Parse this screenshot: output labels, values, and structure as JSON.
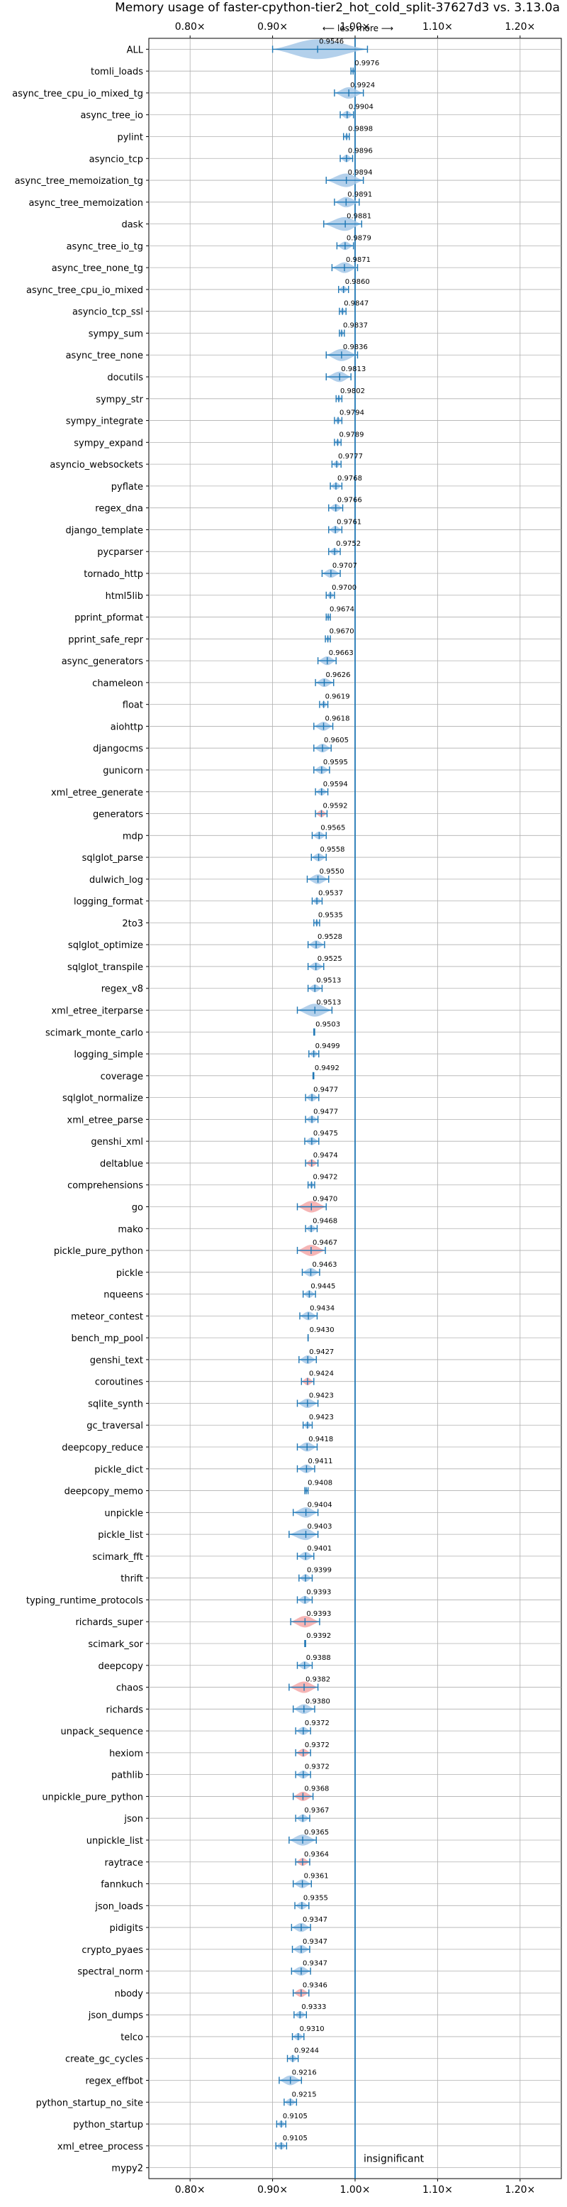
{
  "chart_data": {
    "type": "violin",
    "title": "Memory usage of faster-cpython-tier2_hot_cold_split-37627d3 vs. 3.13.0a",
    "direction_label": "⟵ less   more ⟶",
    "insignificant_label": "insignificant",
    "xlim": [
      0.75,
      1.25
    ],
    "xticks": [
      0.8,
      0.9,
      1.0,
      1.1,
      1.2
    ],
    "xtick_labels": [
      "0.80×",
      "0.90×",
      "1.00×",
      "1.10×",
      "1.20×"
    ],
    "grid": true,
    "colors": {
      "improvement": "#a6c8e8",
      "regression": "#f4a8a8",
      "line": "#1f77b4"
    },
    "benchmarks": [
      {
        "name": "ALL",
        "value": 0.9546,
        "range": [
          0.9,
          1.015
        ],
        "status": "improvement"
      },
      {
        "name": "tomli_loads",
        "value": 0.9976,
        "range": [
          0.995,
          1.0
        ],
        "status": "improvement"
      },
      {
        "name": "async_tree_cpu_io_mixed_tg",
        "value": 0.9924,
        "range": [
          0.975,
          1.01
        ],
        "status": "improvement"
      },
      {
        "name": "async_tree_io",
        "value": 0.9904,
        "range": [
          0.982,
          0.998
        ],
        "status": "improvement"
      },
      {
        "name": "pylint",
        "value": 0.9898,
        "range": [
          0.986,
          0.993
        ],
        "status": "improvement"
      },
      {
        "name": "asyncio_tcp",
        "value": 0.9896,
        "range": [
          0.982,
          0.997
        ],
        "status": "improvement"
      },
      {
        "name": "async_tree_memoization_tg",
        "value": 0.9894,
        "range": [
          0.965,
          1.01
        ],
        "status": "improvement"
      },
      {
        "name": "async_tree_memoization",
        "value": 0.9891,
        "range": [
          0.975,
          1.005
        ],
        "status": "improvement"
      },
      {
        "name": "dask",
        "value": 0.9881,
        "range": [
          0.962,
          1.008
        ],
        "status": "improvement"
      },
      {
        "name": "async_tree_io_tg",
        "value": 0.9879,
        "range": [
          0.978,
          0.998
        ],
        "status": "improvement"
      },
      {
        "name": "async_tree_none_tg",
        "value": 0.9871,
        "range": [
          0.972,
          1.003
        ],
        "status": "improvement"
      },
      {
        "name": "async_tree_cpu_io_mixed",
        "value": 0.986,
        "range": [
          0.98,
          0.992
        ],
        "status": "improvement"
      },
      {
        "name": "asyncio_tcp_ssl",
        "value": 0.9847,
        "range": [
          0.981,
          0.989
        ],
        "status": "improvement"
      },
      {
        "name": "sympy_sum",
        "value": 0.9837,
        "range": [
          0.981,
          0.987
        ],
        "status": "improvement"
      },
      {
        "name": "async_tree_none",
        "value": 0.9836,
        "range": [
          0.965,
          1.003
        ],
        "status": "improvement"
      },
      {
        "name": "docutils",
        "value": 0.9813,
        "range": [
          0.965,
          0.995
        ],
        "status": "improvement"
      },
      {
        "name": "sympy_str",
        "value": 0.9802,
        "range": [
          0.977,
          0.984
        ],
        "status": "improvement"
      },
      {
        "name": "sympy_integrate",
        "value": 0.9794,
        "range": [
          0.975,
          0.984
        ],
        "status": "improvement"
      },
      {
        "name": "sympy_expand",
        "value": 0.9789,
        "range": [
          0.975,
          0.983
        ],
        "status": "improvement"
      },
      {
        "name": "asyncio_websockets",
        "value": 0.9777,
        "range": [
          0.972,
          0.983
        ],
        "status": "improvement"
      },
      {
        "name": "pyflate",
        "value": 0.9768,
        "range": [
          0.97,
          0.984
        ],
        "status": "improvement"
      },
      {
        "name": "regex_dna",
        "value": 0.9766,
        "range": [
          0.968,
          0.985
        ],
        "status": "improvement"
      },
      {
        "name": "django_template",
        "value": 0.9761,
        "range": [
          0.968,
          0.984
        ],
        "status": "improvement"
      },
      {
        "name": "pycparser",
        "value": 0.9752,
        "range": [
          0.968,
          0.982
        ],
        "status": "improvement"
      },
      {
        "name": "tornado_http",
        "value": 0.9707,
        "range": [
          0.96,
          0.982
        ],
        "status": "improvement"
      },
      {
        "name": "html5lib",
        "value": 0.97,
        "range": [
          0.965,
          0.975
        ],
        "status": "improvement"
      },
      {
        "name": "pprint_pformat",
        "value": 0.9674,
        "range": [
          0.965,
          0.97
        ],
        "status": "improvement"
      },
      {
        "name": "pprint_safe_repr",
        "value": 0.967,
        "range": [
          0.964,
          0.97
        ],
        "status": "improvement"
      },
      {
        "name": "async_generators",
        "value": 0.9663,
        "range": [
          0.955,
          0.977
        ],
        "status": "improvement"
      },
      {
        "name": "chameleon",
        "value": 0.9626,
        "range": [
          0.952,
          0.974
        ],
        "status": "improvement"
      },
      {
        "name": "float",
        "value": 0.9619,
        "range": [
          0.957,
          0.967
        ],
        "status": "improvement"
      },
      {
        "name": "aiohttp",
        "value": 0.9618,
        "range": [
          0.95,
          0.973
        ],
        "status": "improvement"
      },
      {
        "name": "djangocms",
        "value": 0.9605,
        "range": [
          0.95,
          0.971
        ],
        "status": "improvement"
      },
      {
        "name": "gunicorn",
        "value": 0.9595,
        "range": [
          0.95,
          0.969
        ],
        "status": "improvement"
      },
      {
        "name": "xml_etree_generate",
        "value": 0.9594,
        "range": [
          0.952,
          0.967
        ],
        "status": "improvement"
      },
      {
        "name": "generators",
        "value": 0.9592,
        "range": [
          0.952,
          0.966
        ],
        "status": "regression"
      },
      {
        "name": "mdp",
        "value": 0.9565,
        "range": [
          0.948,
          0.965
        ],
        "status": "improvement"
      },
      {
        "name": "sqlglot_parse",
        "value": 0.9558,
        "range": [
          0.947,
          0.965
        ],
        "status": "improvement"
      },
      {
        "name": "dulwich_log",
        "value": 0.955,
        "range": [
          0.942,
          0.968
        ],
        "status": "improvement"
      },
      {
        "name": "logging_format",
        "value": 0.9537,
        "range": [
          0.948,
          0.96
        ],
        "status": "improvement"
      },
      {
        "name": "2to3",
        "value": 0.9535,
        "range": [
          0.95,
          0.957
        ],
        "status": "improvement"
      },
      {
        "name": "sqlglot_optimize",
        "value": 0.9528,
        "range": [
          0.943,
          0.963
        ],
        "status": "improvement"
      },
      {
        "name": "sqlglot_transpile",
        "value": 0.9525,
        "range": [
          0.943,
          0.962
        ],
        "status": "improvement"
      },
      {
        "name": "regex_v8",
        "value": 0.9513,
        "range": [
          0.943,
          0.96
        ],
        "status": "improvement"
      },
      {
        "name": "xml_etree_iterparse",
        "value": 0.9513,
        "range": [
          0.93,
          0.972
        ],
        "status": "improvement"
      },
      {
        "name": "scimark_monte_carlo",
        "value": 0.9503,
        "range": [
          0.95,
          0.951
        ],
        "status": "improvement"
      },
      {
        "name": "logging_simple",
        "value": 0.9499,
        "range": [
          0.944,
          0.956
        ],
        "status": "improvement"
      },
      {
        "name": "coverage",
        "value": 0.9492,
        "range": [
          0.949,
          0.95
        ],
        "status": "improvement"
      },
      {
        "name": "sqlglot_normalize",
        "value": 0.9477,
        "range": [
          0.94,
          0.956
        ],
        "status": "improvement"
      },
      {
        "name": "xml_etree_parse",
        "value": 0.9477,
        "range": [
          0.94,
          0.955
        ],
        "status": "improvement"
      },
      {
        "name": "genshi_xml",
        "value": 0.9475,
        "range": [
          0.939,
          0.956
        ],
        "status": "improvement"
      },
      {
        "name": "deltablue",
        "value": 0.9474,
        "range": [
          0.94,
          0.955
        ],
        "status": "regression"
      },
      {
        "name": "comprehensions",
        "value": 0.9472,
        "range": [
          0.943,
          0.951
        ],
        "status": "improvement"
      },
      {
        "name": "go",
        "value": 0.947,
        "range": [
          0.93,
          0.965
        ],
        "status": "regression"
      },
      {
        "name": "mako",
        "value": 0.9468,
        "range": [
          0.94,
          0.954
        ],
        "status": "improvement"
      },
      {
        "name": "pickle_pure_python",
        "value": 0.9467,
        "range": [
          0.93,
          0.964
        ],
        "status": "regression"
      },
      {
        "name": "pickle",
        "value": 0.9463,
        "range": [
          0.936,
          0.957
        ],
        "status": "improvement"
      },
      {
        "name": "nqueens",
        "value": 0.9445,
        "range": [
          0.937,
          0.952
        ],
        "status": "improvement"
      },
      {
        "name": "meteor_contest",
        "value": 0.9434,
        "range": [
          0.933,
          0.954
        ],
        "status": "improvement"
      },
      {
        "name": "bench_mp_pool",
        "value": 0.943,
        "range": [
          0.943,
          0.943
        ],
        "status": "improvement"
      },
      {
        "name": "genshi_text",
        "value": 0.9427,
        "range": [
          0.932,
          0.953
        ],
        "status": "improvement"
      },
      {
        "name": "coroutines",
        "value": 0.9424,
        "range": [
          0.935,
          0.95
        ],
        "status": "regression"
      },
      {
        "name": "sqlite_synth",
        "value": 0.9423,
        "range": [
          0.93,
          0.955
        ],
        "status": "improvement"
      },
      {
        "name": "gc_traversal",
        "value": 0.9423,
        "range": [
          0.937,
          0.948
        ],
        "status": "improvement"
      },
      {
        "name": "deepcopy_reduce",
        "value": 0.9418,
        "range": [
          0.93,
          0.954
        ],
        "status": "improvement"
      },
      {
        "name": "pickle_dict",
        "value": 0.9411,
        "range": [
          0.93,
          0.951
        ],
        "status": "improvement"
      },
      {
        "name": "deepcopy_memo",
        "value": 0.9408,
        "range": [
          0.939,
          0.943
        ],
        "status": "improvement"
      },
      {
        "name": "unpickle",
        "value": 0.9404,
        "range": [
          0.925,
          0.955
        ],
        "status": "improvement"
      },
      {
        "name": "pickle_list",
        "value": 0.9403,
        "range": [
          0.92,
          0.955
        ],
        "status": "improvement"
      },
      {
        "name": "scimark_fft",
        "value": 0.9401,
        "range": [
          0.93,
          0.95
        ],
        "status": "improvement"
      },
      {
        "name": "thrift",
        "value": 0.9399,
        "range": [
          0.932,
          0.948
        ],
        "status": "improvement"
      },
      {
        "name": "typing_runtime_protocols",
        "value": 0.9393,
        "range": [
          0.93,
          0.948
        ],
        "status": "improvement"
      },
      {
        "name": "richards_super",
        "value": 0.9393,
        "range": [
          0.922,
          0.957
        ],
        "status": "regression"
      },
      {
        "name": "scimark_sor",
        "value": 0.9392,
        "range": [
          0.939,
          0.94
        ],
        "status": "improvement"
      },
      {
        "name": "deepcopy",
        "value": 0.9388,
        "range": [
          0.93,
          0.948
        ],
        "status": "improvement"
      },
      {
        "name": "chaos",
        "value": 0.9382,
        "range": [
          0.92,
          0.955
        ],
        "status": "regression"
      },
      {
        "name": "richards",
        "value": 0.938,
        "range": [
          0.925,
          0.951
        ],
        "status": "improvement"
      },
      {
        "name": "unpack_sequence",
        "value": 0.9372,
        "range": [
          0.928,
          0.946
        ],
        "status": "improvement"
      },
      {
        "name": "hexiom",
        "value": 0.9372,
        "range": [
          0.928,
          0.946
        ],
        "status": "regression"
      },
      {
        "name": "pathlib",
        "value": 0.9372,
        "range": [
          0.928,
          0.946
        ],
        "status": "improvement"
      },
      {
        "name": "unpickle_pure_python",
        "value": 0.9368,
        "range": [
          0.925,
          0.949
        ],
        "status": "regression"
      },
      {
        "name": "json",
        "value": 0.9367,
        "range": [
          0.928,
          0.945
        ],
        "status": "improvement"
      },
      {
        "name": "unpickle_list",
        "value": 0.9365,
        "range": [
          0.92,
          0.953
        ],
        "status": "improvement"
      },
      {
        "name": "raytrace",
        "value": 0.9364,
        "range": [
          0.928,
          0.945
        ],
        "status": "regression"
      },
      {
        "name": "fannkuch",
        "value": 0.9361,
        "range": [
          0.925,
          0.947
        ],
        "status": "improvement"
      },
      {
        "name": "json_loads",
        "value": 0.9355,
        "range": [
          0.927,
          0.944
        ],
        "status": "improvement"
      },
      {
        "name": "pidigits",
        "value": 0.9347,
        "range": [
          0.923,
          0.946
        ],
        "status": "improvement"
      },
      {
        "name": "crypto_pyaes",
        "value": 0.9347,
        "range": [
          0.924,
          0.945
        ],
        "status": "improvement"
      },
      {
        "name": "spectral_norm",
        "value": 0.9347,
        "range": [
          0.923,
          0.946
        ],
        "status": "improvement"
      },
      {
        "name": "nbody",
        "value": 0.9346,
        "range": [
          0.925,
          0.944
        ],
        "status": "regression"
      },
      {
        "name": "json_dumps",
        "value": 0.9333,
        "range": [
          0.926,
          0.941
        ],
        "status": "improvement"
      },
      {
        "name": "telco",
        "value": 0.931,
        "range": [
          0.924,
          0.938
        ],
        "status": "improvement"
      },
      {
        "name": "create_gc_cycles",
        "value": 0.9244,
        "range": [
          0.918,
          0.931
        ],
        "status": "improvement"
      },
      {
        "name": "regex_effbot",
        "value": 0.9216,
        "range": [
          0.908,
          0.935
        ],
        "status": "improvement"
      },
      {
        "name": "python_startup_no_site",
        "value": 0.9215,
        "range": [
          0.914,
          0.929
        ],
        "status": "improvement"
      },
      {
        "name": "python_startup",
        "value": 0.9105,
        "range": [
          0.905,
          0.916
        ],
        "status": "improvement"
      },
      {
        "name": "xml_etree_process",
        "value": 0.9105,
        "range": [
          0.904,
          0.917
        ],
        "status": "improvement"
      },
      {
        "name": "mypy2",
        "value": null,
        "range": null,
        "status": "insignificant"
      }
    ]
  }
}
